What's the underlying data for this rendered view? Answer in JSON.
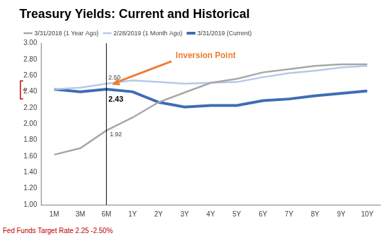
{
  "chart_data": {
    "type": "line",
    "title": "Treasury Yields: Current and Historical",
    "categories": [
      "1M",
      "3M",
      "6M",
      "1Y",
      "2Y",
      "3Y",
      "4Y",
      "5Y",
      "6Y",
      "7Y",
      "8Y",
      "9Y",
      "10Y"
    ],
    "series": [
      {
        "name": "3/31/2019 (Current)",
        "color": "#3d6db5",
        "values": [
          2.43,
          2.4,
          2.43,
          2.4,
          2.27,
          2.21,
          2.23,
          2.23,
          2.29,
          2.31,
          2.35,
          2.38,
          2.41
        ]
      },
      {
        "name": "2/28/2019 (1 Month Ago)",
        "color": "#b4c9e8",
        "values": [
          2.43,
          2.45,
          2.5,
          2.54,
          2.52,
          2.5,
          2.51,
          2.52,
          2.58,
          2.63,
          2.66,
          2.7,
          2.72
        ]
      },
      {
        "name": "3/31/2018 (1 Year Ago)",
        "color": "#a6a6a6",
        "values": [
          1.62,
          1.7,
          1.92,
          2.08,
          2.27,
          2.39,
          2.51,
          2.56,
          2.64,
          2.68,
          2.72,
          2.74,
          2.74
        ]
      }
    ],
    "ylim": [
      1,
      3
    ],
    "yticks": [
      {
        "value": 1,
        "label": "1.00"
      },
      {
        "value": 1.2,
        "label": "1.20"
      },
      {
        "value": 1.4,
        "label": "1.40"
      },
      {
        "value": 1.6,
        "label": "1.60"
      },
      {
        "value": 1.8,
        "label": "1.80"
      },
      {
        "value": 2,
        "label": "2.00"
      },
      {
        "value": 2.2,
        "label": "2.20"
      },
      {
        "value": 2.4,
        "label": "2.40"
      },
      {
        "value": 2.6,
        "label": "2.60"
      },
      {
        "value": 2.8,
        "label": "2.80"
      },
      {
        "value": 3,
        "label": "3.00"
      }
    ],
    "grid": false,
    "legend": "top",
    "annotations": [
      {
        "text": "Inversion Point",
        "category": "6M",
        "value": 2.47
      },
      {
        "text": "2.50",
        "category": "6M",
        "value": 2.5
      },
      {
        "text": "2.43",
        "category": "6M",
        "value": 2.43
      },
      {
        "text": "1.92",
        "category": "6M",
        "value": 1.92
      }
    ],
    "note": "Fed Funds Target Rate 2.25 -2.50%"
  }
}
